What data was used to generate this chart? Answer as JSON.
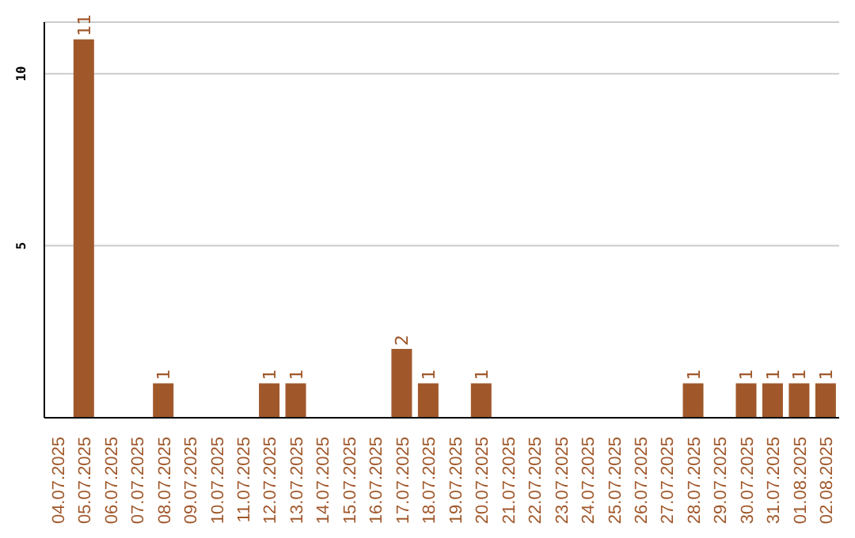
{
  "chart_data": {
    "type": "bar",
    "categories": [
      "04.07.2025",
      "05.07.2025",
      "06.07.2025",
      "07.07.2025",
      "08.07.2025",
      "09.07.2025",
      "10.07.2025",
      "11.07.2025",
      "12.07.2025",
      "13.07.2025",
      "14.07.2025",
      "15.07.2025",
      "16.07.2025",
      "17.07.2025",
      "18.07.2025",
      "19.07.2025",
      "20.07.2025",
      "21.07.2025",
      "22.07.2025",
      "23.07.2025",
      "24.07.2025",
      "25.07.2025",
      "26.07.2025",
      "27.07.2025",
      "28.07.2025",
      "29.07.2025",
      "30.07.2025",
      "31.07.2025",
      "01.08.2025",
      "02.08.2025"
    ],
    "values": [
      0,
      11,
      0,
      0,
      1,
      0,
      0,
      0,
      1,
      1,
      0,
      0,
      0,
      2,
      1,
      0,
      1,
      0,
      0,
      0,
      0,
      0,
      0,
      0,
      1,
      0,
      1,
      1,
      1,
      1
    ],
    "value_labels": [
      null,
      "11",
      null,
      null,
      "1",
      null,
      null,
      null,
      "1",
      "1",
      null,
      null,
      null,
      "2",
      "1",
      null,
      "1",
      null,
      null,
      null,
      null,
      null,
      null,
      null,
      "1",
      null,
      "1",
      "1",
      "1",
      "1"
    ],
    "color": "#a0582b",
    "ylim": [
      0,
      11.5
    ],
    "yticks": [
      5,
      10
    ],
    "grid": "y"
  }
}
